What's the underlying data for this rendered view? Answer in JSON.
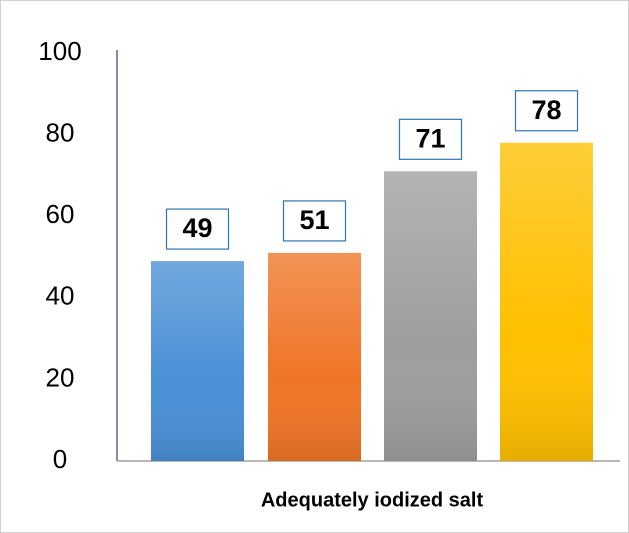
{
  "chart_data": {
    "type": "bar",
    "categories": [
      "Adequately iodized salt"
    ],
    "series": [
      {
        "color": "#4a90d6",
        "values": [
          49
        ]
      },
      {
        "color": "#ef7526",
        "values": [
          51
        ]
      },
      {
        "color": "#9e9e9e",
        "values": [
          71
        ]
      },
      {
        "color": "#ffc000",
        "values": [
          78
        ]
      }
    ],
    "ylim": [
      0,
      100
    ],
    "yticks": [
      0,
      20,
      40,
      60,
      80,
      100
    ],
    "grid": false
  }
}
